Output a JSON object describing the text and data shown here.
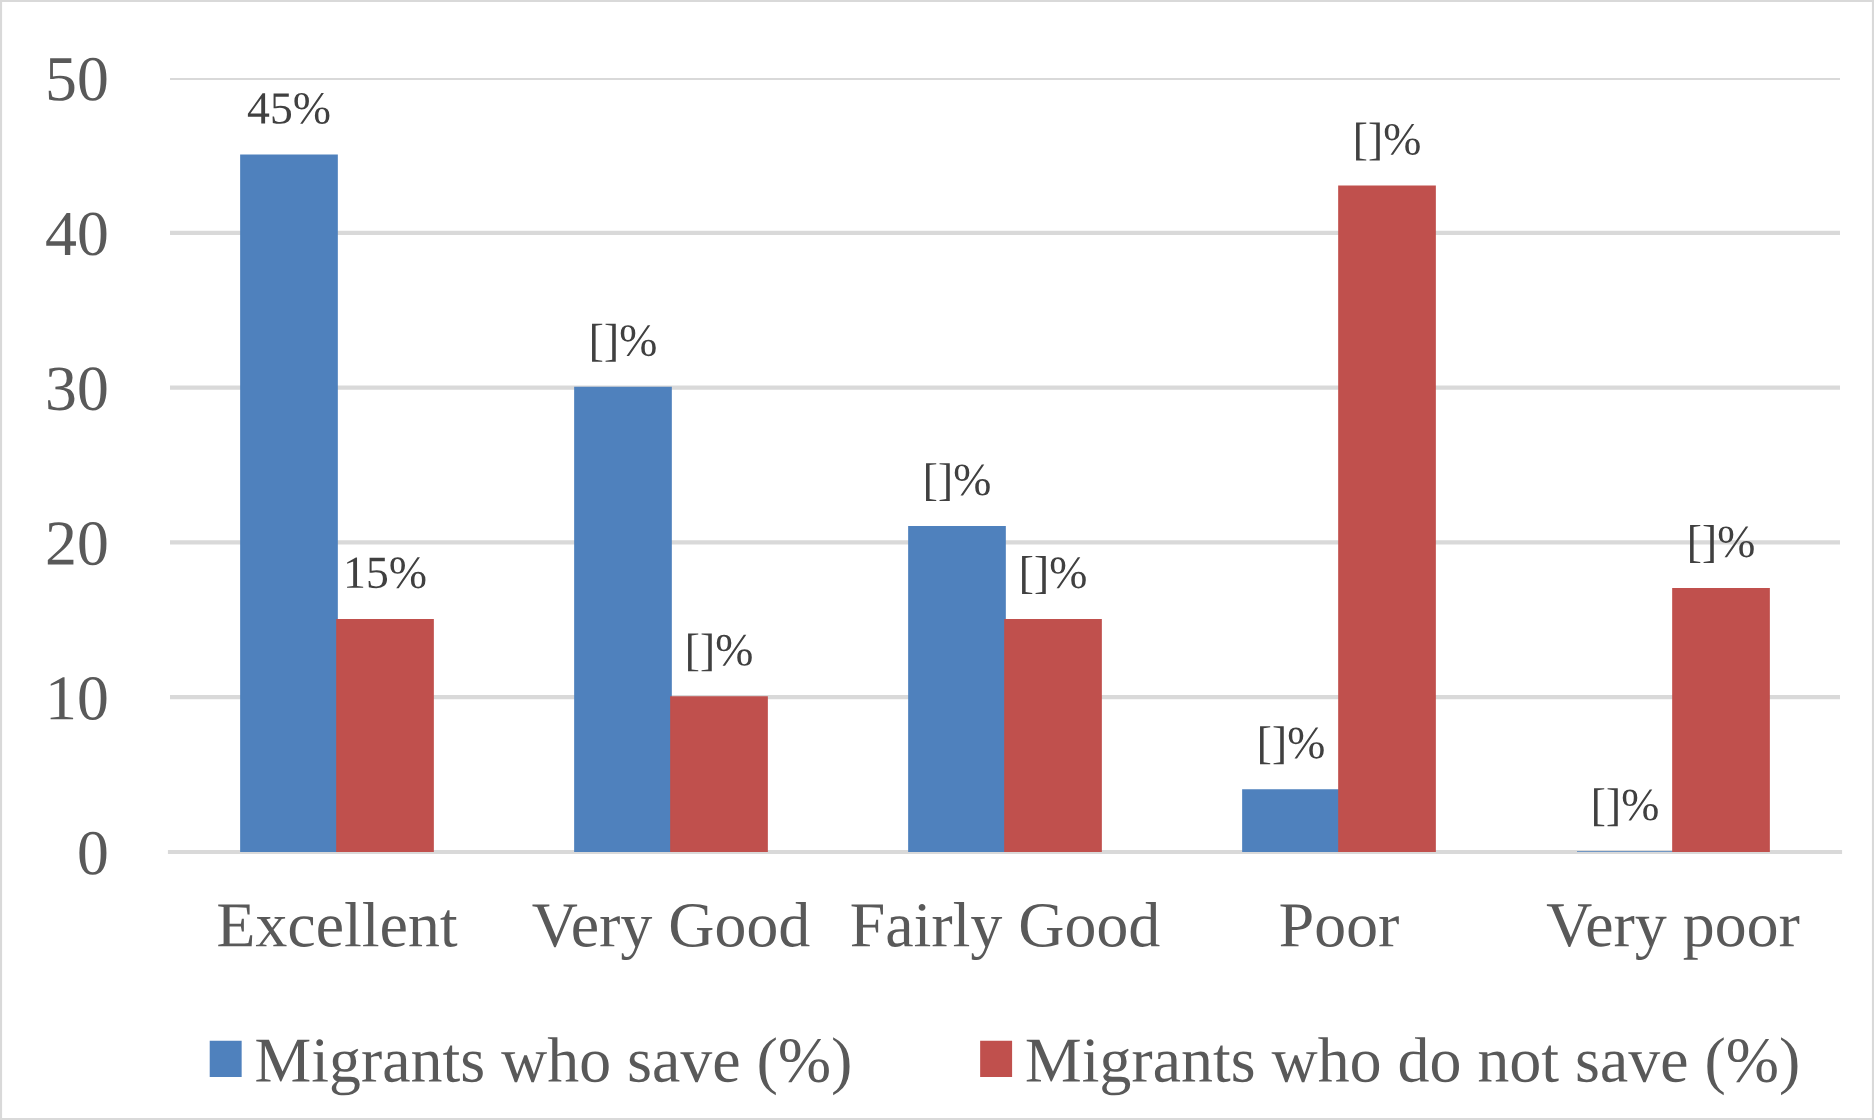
{
  "chart_data": {
    "type": "bar",
    "categories": [
      "Excellent",
      "Very Good",
      "Fairly Good",
      "Poor",
      "Very poor"
    ],
    "series": [
      {
        "name": "Migrants who save (%)",
        "color": "#4f81bd",
        "values": [
          45,
          30,
          21,
          4,
          0
        ],
        "value_labels": [
          "45%",
          "[]%",
          "[]%",
          "[]%",
          "[]%"
        ]
      },
      {
        "name": "Migrants who do not save (%)",
        "color": "#c0504d",
        "values": [
          15,
          10,
          15,
          43,
          17
        ],
        "value_labels": [
          "15%",
          "[]%",
          "[]%",
          "[]%",
          "[]%"
        ]
      }
    ],
    "ylim": [
      0,
      50
    ],
    "yticks": [
      0,
      10,
      20,
      30,
      40,
      50
    ],
    "grid": "y",
    "legend": "bottom"
  }
}
